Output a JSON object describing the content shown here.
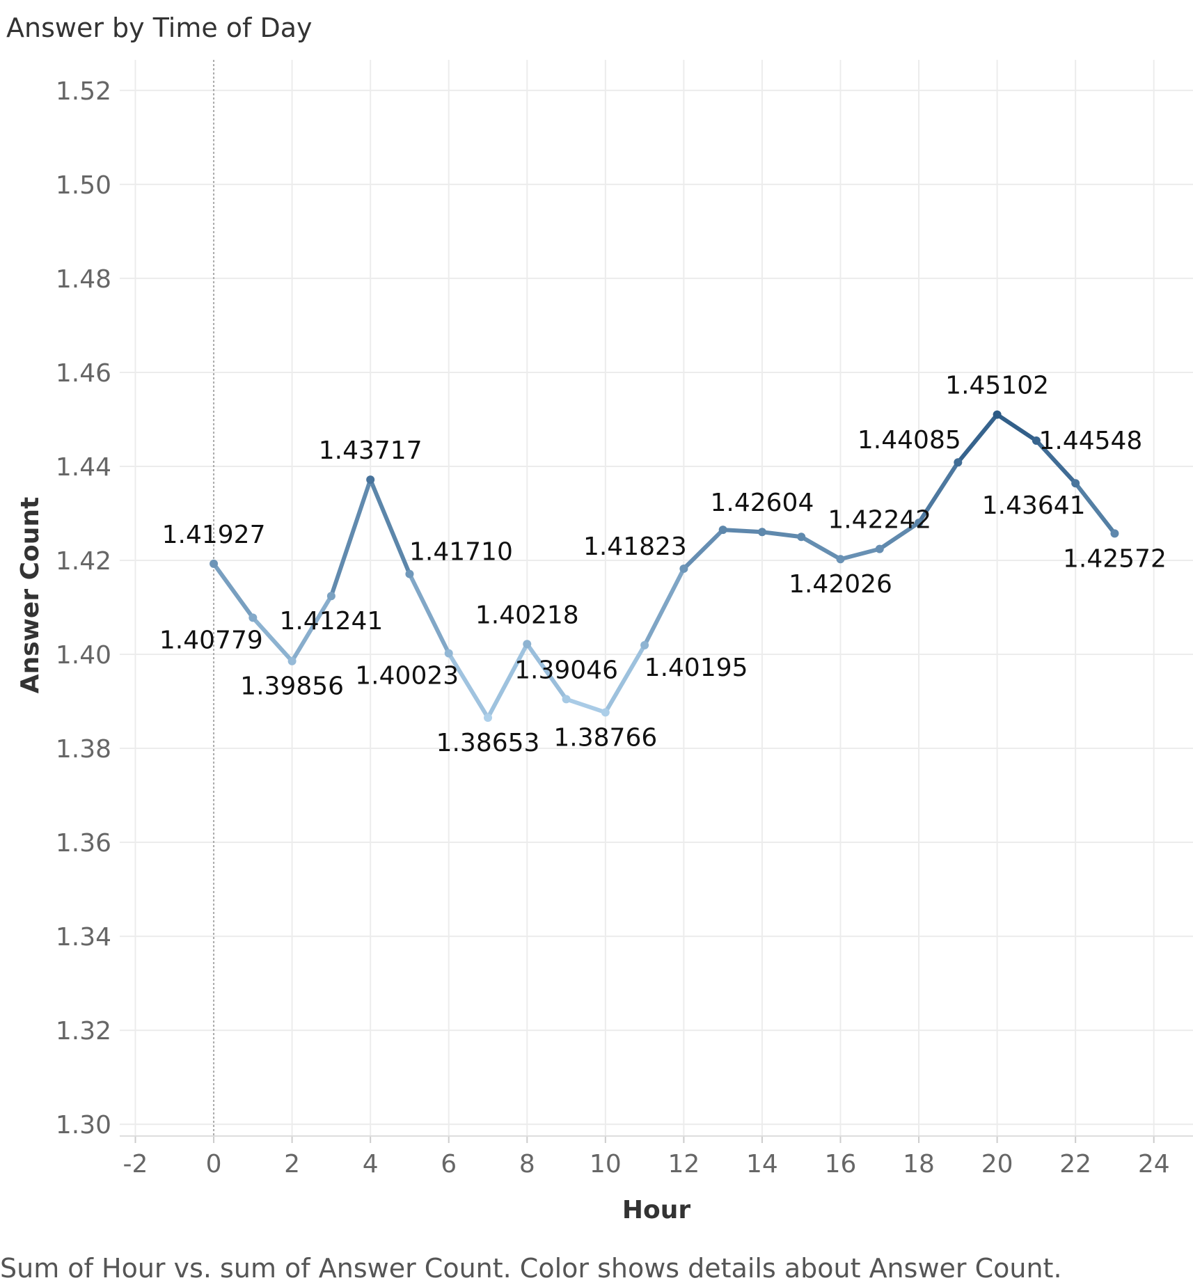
{
  "chart_data": {
    "type": "line",
    "title": "Answer by Time of Day",
    "caption": "Sum of Hour vs. sum of Answer Count.  Color shows details about Answer Count.",
    "xlabel": "Hour",
    "ylabel": "Answer Count",
    "xlim": [
      -2.4,
      25
    ],
    "ylim": [
      1.2975,
      1.5265
    ],
    "x_ticks": [
      -2,
      0,
      2,
      4,
      6,
      8,
      10,
      12,
      14,
      16,
      18,
      20,
      22,
      24
    ],
    "y_ticks": [
      1.3,
      1.32,
      1.34,
      1.36,
      1.38,
      1.4,
      1.42,
      1.44,
      1.46,
      1.48,
      1.5,
      1.52
    ],
    "y_tick_labels": [
      "1.30",
      "1.32",
      "1.34",
      "1.36",
      "1.38",
      "1.40",
      "1.42",
      "1.44",
      "1.46",
      "1.48",
      "1.50",
      "1.52"
    ],
    "grid": true,
    "zero_reference_line": true,
    "color_min": "#aed0ea",
    "color_max": "#2c5a85",
    "points": [
      {
        "x": 0,
        "y": 1.41927,
        "label": "1.41927",
        "label_pos": "above"
      },
      {
        "x": 1,
        "y": 1.40779,
        "label": "1.40779",
        "label_pos": "left-below"
      },
      {
        "x": 2,
        "y": 1.39856,
        "label": "1.39856",
        "label_pos": "below"
      },
      {
        "x": 3,
        "y": 1.41241,
        "label": "1.41241",
        "label_pos": "below"
      },
      {
        "x": 4,
        "y": 1.43717,
        "label": "1.43717",
        "label_pos": "above"
      },
      {
        "x": 5,
        "y": 1.4171,
        "label": "1.41710",
        "label_pos": "right-above"
      },
      {
        "x": 6,
        "y": 1.40023,
        "label": "1.40023",
        "label_pos": "left-below"
      },
      {
        "x": 7,
        "y": 1.38653,
        "label": "1.38653",
        "label_pos": "below"
      },
      {
        "x": 8,
        "y": 1.40218,
        "label": "1.40218",
        "label_pos": "above"
      },
      {
        "x": 9,
        "y": 1.39046,
        "label": "1.39046",
        "label_pos": "above"
      },
      {
        "x": 10,
        "y": 1.38766,
        "label": "1.38766",
        "label_pos": "below"
      },
      {
        "x": 11,
        "y": 1.40195,
        "label": "1.40195",
        "label_pos": "right-below"
      },
      {
        "x": 12,
        "y": 1.41823,
        "label": "1.41823",
        "label_pos": "left-above"
      },
      {
        "x": 13,
        "y": 1.42649,
        "label": "",
        "label_pos": "none"
      },
      {
        "x": 14,
        "y": 1.42604,
        "label": "1.42604",
        "label_pos": "above"
      },
      {
        "x": 15,
        "y": 1.425,
        "label": "",
        "label_pos": "none"
      },
      {
        "x": 16,
        "y": 1.42026,
        "label": "1.42026",
        "label_pos": "below"
      },
      {
        "x": 17,
        "y": 1.42242,
        "label": "1.42242",
        "label_pos": "above"
      },
      {
        "x": 18,
        "y": 1.428,
        "label": "",
        "label_pos": "none"
      },
      {
        "x": 19,
        "y": 1.44085,
        "label": "1.44085",
        "label_pos": "left-above"
      },
      {
        "x": 20,
        "y": 1.45102,
        "label": "1.45102",
        "label_pos": "above"
      },
      {
        "x": 21,
        "y": 1.44548,
        "label": "1.44548",
        "label_pos": "right"
      },
      {
        "x": 22,
        "y": 1.43641,
        "label": "1.43641",
        "label_pos": "left-below"
      },
      {
        "x": 23,
        "y": 1.42572,
        "label": "1.42572",
        "label_pos": "below"
      }
    ]
  }
}
